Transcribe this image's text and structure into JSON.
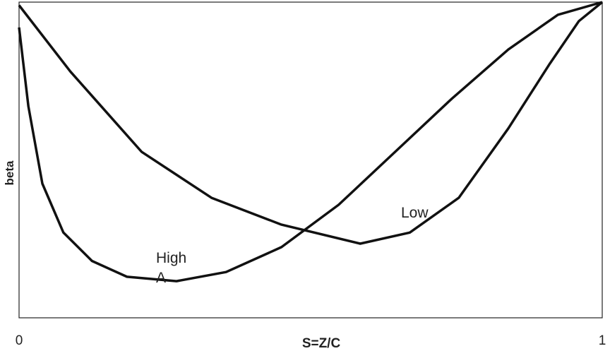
{
  "chart_data": {
    "type": "line",
    "x_label": "S=Z/C",
    "y_label": "beta",
    "xlim": [
      0,
      1
    ],
    "ylim": [
      0,
      1
    ],
    "xticks": [
      0,
      1
    ],
    "annotations": [
      "High A",
      "Low"
    ],
    "series": [
      {
        "name": "High A",
        "color": "#111111",
        "x": [
          0,
          0.016,
          0.04,
          0.076,
          0.125,
          0.185,
          0.27,
          0.355,
          0.45,
          0.548,
          0.645,
          0.742,
          0.839,
          0.924,
          1
        ],
        "values": [
          0.92,
          0.67,
          0.425,
          0.27,
          0.18,
          0.13,
          0.116,
          0.145,
          0.224,
          0.358,
          0.526,
          0.694,
          0.85,
          0.96,
          1.0
        ]
      },
      {
        "name": "Low",
        "color": "#111111",
        "x": [
          0,
          0.088,
          0.21,
          0.33,
          0.45,
          0.585,
          0.67,
          0.754,
          0.839,
          0.91,
          0.96,
          1
        ],
        "values": [
          0.99,
          0.78,
          0.526,
          0.38,
          0.295,
          0.235,
          0.27,
          0.38,
          0.6,
          0.805,
          0.94,
          1.0
        ]
      }
    ]
  }
}
